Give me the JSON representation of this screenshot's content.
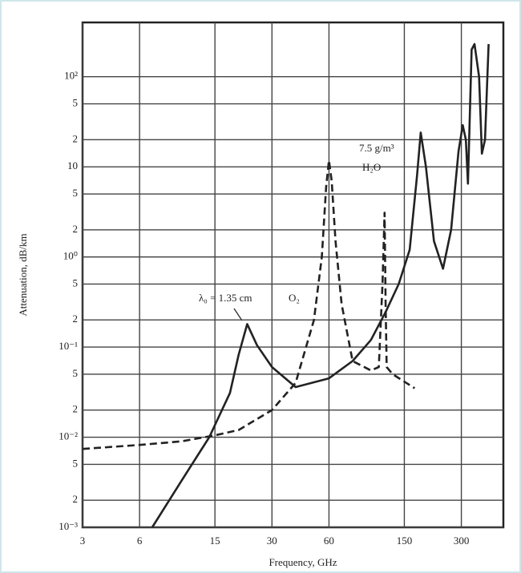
{
  "chart_data": {
    "type": "line",
    "x_label": "Frequency, GHz",
    "y_label": "Attenuation, dB/km",
    "xscale": "log",
    "yscale": "log",
    "grid": true,
    "xlim": [
      3,
      500
    ],
    "ylim": [
      0.001,
      400
    ],
    "xticks": [
      3,
      6,
      15,
      30,
      60,
      150,
      300
    ],
    "yticks": [
      {
        "value": 0.001,
        "label": "10⁻³"
      },
      {
        "value": 0.002,
        "label": "2"
      },
      {
        "value": 0.005,
        "label": "5"
      },
      {
        "value": 0.01,
        "label": "10⁻²"
      },
      {
        "value": 0.02,
        "label": "2"
      },
      {
        "value": 0.05,
        "label": "5"
      },
      {
        "value": 0.1,
        "label": "10⁻¹"
      },
      {
        "value": 0.2,
        "label": "2"
      },
      {
        "value": 0.5,
        "label": "5"
      },
      {
        "value": 1,
        "label": "10⁰"
      },
      2,
      5,
      10,
      {
        "value": 20,
        "label": "2"
      },
      {
        "value": 50,
        "label": "5"
      },
      {
        "value": 100,
        "label": "10²"
      }
    ],
    "annotations": [
      "λ₀ = 1.35 cm",
      "7.5 g/m³"
    ],
    "series": [
      {
        "name": "H₂O",
        "color": "#222222",
        "line_style": "solid",
        "x": [
          7,
          10,
          14,
          18,
          20,
          22.2,
          25,
          30,
          40,
          60,
          80,
          100,
          120,
          140,
          160,
          175,
          183,
          195,
          215,
          240,
          265,
          290,
          305,
          317,
          325,
          340,
          352,
          372,
          385,
          400,
          418
        ],
        "values": [
          0.001,
          0.0033,
          0.01,
          0.031,
          0.082,
          0.18,
          0.105,
          0.06,
          0.036,
          0.045,
          0.07,
          0.12,
          0.25,
          0.5,
          1.2,
          8,
          24,
          10,
          1.5,
          0.74,
          2,
          15,
          29,
          20,
          6.5,
          200,
          230,
          100,
          14,
          20,
          230
        ]
      },
      {
        "name": "O₂",
        "color": "#222222",
        "line_style": "dashed",
        "x": [
          3,
          6,
          10,
          15,
          20,
          30,
          40,
          50,
          55,
          58,
          60,
          62,
          65,
          70,
          80,
          100,
          110,
          115,
          118,
          119.5,
          121,
          130,
          170
        ],
        "values": [
          0.0074,
          0.0082,
          0.009,
          0.0105,
          0.012,
          0.02,
          0.04,
          0.2,
          1,
          6,
          11.8,
          7,
          1.5,
          0.3,
          0.07,
          0.055,
          0.06,
          0.5,
          3.1,
          0.3,
          0.06,
          0.05,
          0.035
        ]
      }
    ]
  }
}
